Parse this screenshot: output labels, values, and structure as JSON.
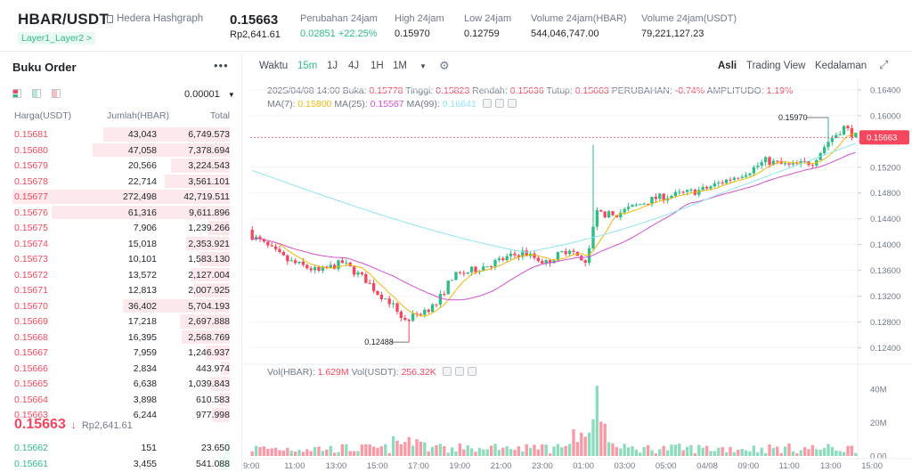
{
  "header": {
    "pair": "HBAR/USDT",
    "name": "Hedera Hashgraph",
    "tags": "Layer1_Layer2 >",
    "last_price": "0.15663",
    "last_price_fiat": "Rp2,641.61",
    "stats": [
      {
        "label": "Perubahan 24jam",
        "value": "0.02851 +22.25%",
        "green": true
      },
      {
        "label": "High 24jam",
        "value": "0.15970"
      },
      {
        "label": "Low 24jam",
        "value": "0.12759"
      },
      {
        "label": "Volume 24jam(HBAR)",
        "value": "544,046,747.00"
      },
      {
        "label": "Volume 24jam(USDT)",
        "value": "79,221,127.23"
      }
    ]
  },
  "orderbook": {
    "title": "Buku Order",
    "decimals": "0.00001",
    "col_price": "Harga(USDT)",
    "col_amount": "Jumlah(HBAR)",
    "col_total": "Total",
    "asks": [
      {
        "price": "0.15681",
        "amount": "43,043",
        "total": "6,749.573",
        "depth": 0.58
      },
      {
        "price": "0.15680",
        "amount": "47,058",
        "total": "7,378.694",
        "depth": 0.63
      },
      {
        "price": "0.15679",
        "amount": "20,566",
        "total": "3,224.543",
        "depth": 0.27
      },
      {
        "price": "0.15678",
        "amount": "22,714",
        "total": "3,561.101",
        "depth": 0.3
      },
      {
        "price": "0.15677",
        "amount": "272,498",
        "total": "42,719.511",
        "depth": 1.0
      },
      {
        "price": "0.15676",
        "amount": "61,316",
        "total": "9,611.896",
        "depth": 0.82
      },
      {
        "price": "0.15675",
        "amount": "7,906",
        "total": "1,239.266",
        "depth": 0.1
      },
      {
        "price": "0.15674",
        "amount": "15,018",
        "total": "2,353.921",
        "depth": 0.2
      },
      {
        "price": "0.15673",
        "amount": "10,101",
        "total": "1,583.130",
        "depth": 0.14
      },
      {
        "price": "0.15672",
        "amount": "13,572",
        "total": "2,127.004",
        "depth": 0.18
      },
      {
        "price": "0.15671",
        "amount": "12,813",
        "total": "2,007.925",
        "depth": 0.17
      },
      {
        "price": "0.15670",
        "amount": "36,402",
        "total": "5,704.193",
        "depth": 0.49
      },
      {
        "price": "0.15669",
        "amount": "17,218",
        "total": "2,697.888",
        "depth": 0.23
      },
      {
        "price": "0.15668",
        "amount": "16,395",
        "total": "2,568.769",
        "depth": 0.22
      },
      {
        "price": "0.15667",
        "amount": "7,959",
        "total": "1,246.937",
        "depth": 0.11
      },
      {
        "price": "0.15666",
        "amount": "2,834",
        "total": "443.974",
        "depth": 0.04
      },
      {
        "price": "0.15665",
        "amount": "6,638",
        "total": "1,039.843",
        "depth": 0.09
      },
      {
        "price": "0.15664",
        "amount": "3,898",
        "total": "610.583",
        "depth": 0.05
      },
      {
        "price": "0.15663",
        "amount": "6,244",
        "total": "977.998",
        "depth": 0.08
      }
    ],
    "mid_price": "0.15663",
    "mid_arrow": "↓",
    "mid_fiat": "Rp2,641.61",
    "bids": [
      {
        "price": "0.15662",
        "amount": "151",
        "total": "23.650",
        "depth": 0.02
      },
      {
        "price": "0.15661",
        "amount": "3,455",
        "total": "541.088",
        "depth": 0.05
      }
    ]
  },
  "toolbar": {
    "time": "Waktu",
    "intervals": [
      "15m",
      "1J",
      "4J",
      "1H",
      "1M"
    ],
    "active_interval": "15m",
    "views": [
      "Asli",
      "Trading View",
      "Kedalaman"
    ],
    "active_view": "Asli"
  },
  "legend": {
    "ohlc_date": "2025/04/08 14:00",
    "buka_label": "Buka:",
    "buka": "0.15778",
    "tinggi_label": "Tinggi:",
    "tinggi": "0.15823",
    "rendah_label": "Rendah:",
    "rendah": "0.15636",
    "tutup_label": "Tutup:",
    "tutup": "0.15663",
    "change_label": "PERUBAHAN:",
    "change": "-0.74%",
    "amp_label": "AMPLITUDO:",
    "amp": "1.19%",
    "ma7_label": "MA(7):",
    "ma7": "0.15800",
    "ma25_label": "MA(25):",
    "ma25": "0.15567",
    "ma99_label": "MA(99):",
    "ma99": "0.16641",
    "vol_label": "Vol(HBAR):",
    "vol_hbar": "1.629M",
    "volu_label": "Vol(USDT):",
    "vol_usdt": "256.32K"
  },
  "colors": {
    "up": "#2ebd85",
    "down": "#f6465d",
    "ma7": "#f0b90b",
    "ma25": "#d64fd2",
    "ma99": "#8fe4ef"
  },
  "chart_data": {
    "type": "candlestick",
    "price_ticks": [
      "0.16400",
      "0.16000",
      "0.15600",
      "0.15200",
      "0.14800",
      "0.14400",
      "0.14000",
      "0.13600",
      "0.13200",
      "0.12800",
      "0.12400"
    ],
    "price_range": [
      0.122,
      0.1655
    ],
    "current_price_label": "0.15663",
    "high_marker": "0.15970",
    "low_marker": "0.12488",
    "volume_ticks": [
      "40M",
      "20M",
      "0.00"
    ],
    "volume_range": [
      0,
      48
    ],
    "time_ticks": [
      "9:00",
      "11:00",
      "13:00",
      "15:00",
      "17:00",
      "19:00",
      "21:00",
      "23:00",
      "01:00",
      "03:00",
      "05:00",
      "04/08",
      "09:00",
      "11:00",
      "13:00",
      "15:00"
    ]
  }
}
